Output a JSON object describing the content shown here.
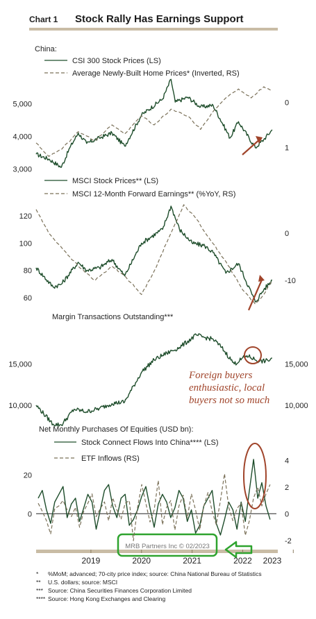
{
  "header": {
    "chart_number": "Chart 1",
    "title": "Stock Rally Has Earnings Support"
  },
  "colors": {
    "primary_series": "#1e4d2b",
    "secondary_series": "#7a7058",
    "annotation": "#a0442a",
    "watermark_box": "#2ea32e",
    "rule": "#c9bca5"
  },
  "chart_data": [
    {
      "type": "line",
      "panel_heading": "China:",
      "x_range": [
        "2018-06",
        "2023-03"
      ],
      "left_axis": {
        "ticks": [
          "3,000",
          "4,000",
          "5,000"
        ],
        "tick_values": [
          3000,
          4000,
          5000
        ],
        "range": [
          2900,
          5800
        ]
      },
      "right_axis": {
        "ticks": [
          "0",
          "1"
        ],
        "tick_values": [
          0,
          1
        ],
        "range": [
          -0.55,
          1.55
        ],
        "inverted": true
      },
      "series": [
        {
          "name": "CSI 300 Stock Prices (LS)",
          "axis": "left",
          "style": "solid",
          "points": [
            [
              "2018-06",
              3450
            ],
            [
              "2018-09",
              3300
            ],
            [
              "2018-12",
              3050
            ],
            [
              "2019-02",
              3650
            ],
            [
              "2019-04",
              4100
            ],
            [
              "2019-06",
              3780
            ],
            [
              "2019-09",
              3950
            ],
            [
              "2019-12",
              4100
            ],
            [
              "2020-03",
              3700
            ],
            [
              "2020-07",
              4650
            ],
            [
              "2020-12",
              5150
            ],
            [
              "2021-02",
              5750
            ],
            [
              "2021-03",
              5050
            ],
            [
              "2021-06",
              5200
            ],
            [
              "2021-09",
              4900
            ],
            [
              "2021-12",
              4950
            ],
            [
              "2022-04",
              3950
            ],
            [
              "2022-06",
              4450
            ],
            [
              "2022-10",
              3650
            ],
            [
              "2022-12",
              3900
            ],
            [
              "2023-02",
              4200
            ]
          ]
        },
        {
          "name": "Average Newly-Built Home Prices* (Inverted, RS)",
          "axis": "right",
          "style": "dashed",
          "points": [
            [
              "2018-06",
              0.9
            ],
            [
              "2018-09",
              1.2
            ],
            [
              "2018-12",
              1.05
            ],
            [
              "2019-04",
              0.65
            ],
            [
              "2019-08",
              0.85
            ],
            [
              "2019-12",
              0.5
            ],
            [
              "2020-03",
              0.7
            ],
            [
              "2020-07",
              0.3
            ],
            [
              "2020-10",
              0.5
            ],
            [
              "2021-02",
              0.15
            ],
            [
              "2021-06",
              0.3
            ],
            [
              "2021-09",
              0.6
            ],
            [
              "2021-12",
              0.2
            ],
            [
              "2022-03",
              -0.1
            ],
            [
              "2022-06",
              -0.3
            ],
            [
              "2022-09",
              -0.1
            ],
            [
              "2022-12",
              -0.35
            ],
            [
              "2023-02",
              -0.25
            ]
          ]
        }
      ]
    },
    {
      "type": "line",
      "x_range": [
        "2018-06",
        "2023-03"
      ],
      "left_axis": {
        "ticks": [
          "60",
          "80",
          "100",
          "120"
        ],
        "tick_values": [
          60,
          80,
          100,
          120
        ],
        "range": [
          52,
          128
        ]
      },
      "right_axis": {
        "ticks": [
          "0",
          "-10"
        ],
        "tick_values": [
          0,
          -10
        ],
        "range": [
          -16,
          6
        ]
      },
      "series": [
        {
          "name": "MSCI Stock Prices** (LS)",
          "axis": "left",
          "style": "solid",
          "points": [
            [
              "2018-06",
              82
            ],
            [
              "2018-10",
              68
            ],
            [
              "2018-12",
              70
            ],
            [
              "2019-04",
              86
            ],
            [
              "2019-06",
              80
            ],
            [
              "2019-09",
              82
            ],
            [
              "2019-12",
              88
            ],
            [
              "2020-03",
              76
            ],
            [
              "2020-07",
              100
            ],
            [
              "2020-12",
              110
            ],
            [
              "2021-02",
              127
            ],
            [
              "2021-04",
              110
            ],
            [
              "2021-07",
              100
            ],
            [
              "2021-10",
              98
            ],
            [
              "2021-12",
              93
            ],
            [
              "2022-03",
              78
            ],
            [
              "2022-06",
              85
            ],
            [
              "2022-10",
              57
            ],
            [
              "2022-12",
              66
            ],
            [
              "2023-02",
              73
            ]
          ]
        },
        {
          "name": "MSCI 12-Month Forward Earnings** (%YoY, RS)",
          "axis": "right",
          "style": "dashed",
          "points": [
            [
              "2018-06",
              5
            ],
            [
              "2018-09",
              0
            ],
            [
              "2018-12",
              -3
            ],
            [
              "2019-04",
              -7
            ],
            [
              "2019-08",
              -10
            ],
            [
              "2019-12",
              -7
            ],
            [
              "2020-03",
              -9
            ],
            [
              "2020-07",
              -13
            ],
            [
              "2020-10",
              -8
            ],
            [
              "2021-02",
              0
            ],
            [
              "2021-05",
              6
            ],
            [
              "2021-08",
              3
            ],
            [
              "2021-11",
              -1
            ],
            [
              "2022-03",
              -6
            ],
            [
              "2022-07",
              -12
            ],
            [
              "2022-10",
              -15
            ],
            [
              "2022-12",
              -13
            ],
            [
              "2023-02",
              -10
            ]
          ]
        }
      ]
    },
    {
      "type": "line",
      "title": "Margin Transactions Outstanding***",
      "x_range": [
        "2018-06",
        "2023-03"
      ],
      "left_axis": {
        "ticks": [
          "10,000",
          "15,000"
        ],
        "tick_values": [
          10000,
          15000
        ],
        "range": [
          7800,
          20000
        ]
      },
      "right_axis": {
        "ticks": [
          "10,000",
          "15,000"
        ],
        "tick_values": [
          10000,
          15000
        ],
        "range": [
          7800,
          20000
        ]
      },
      "series": [
        {
          "name": "Margin Transactions Outstanding***",
          "axis": "left",
          "style": "solid",
          "points": [
            [
              "2018-06",
              10000
            ],
            [
              "2018-10",
              7700
            ],
            [
              "2018-12",
              7600
            ],
            [
              "2019-03",
              9500
            ],
            [
              "2019-06",
              9200
            ],
            [
              "2019-09",
              9600
            ],
            [
              "2019-12",
              10200
            ],
            [
              "2020-03",
              10400
            ],
            [
              "2020-07",
              14000
            ],
            [
              "2020-10",
              15500
            ],
            [
              "2021-01",
              16300
            ],
            [
              "2021-04",
              17000
            ],
            [
              "2021-08",
              18500
            ],
            [
              "2021-10",
              18200
            ],
            [
              "2021-12",
              18000
            ],
            [
              "2022-02",
              17000
            ],
            [
              "2022-05",
              15000
            ],
            [
              "2022-08",
              16000
            ],
            [
              "2022-11",
              15300
            ],
            [
              "2023-01",
              15400
            ],
            [
              "2023-02",
              15700
            ]
          ]
        }
      ],
      "annotation": "Foreign buyers enthusiastic, local buyers not so much",
      "annotation_lines": [
        "Foreign buyers",
        "enthusiastic, local",
        "buyers not so much"
      ]
    },
    {
      "type": "line",
      "title": "Net Monthly Purchases Of Equities (USD bn):",
      "x_range": [
        "2018-06",
        "2023-03"
      ],
      "x_ticks": [
        "2019",
        "2020",
        "2021",
        "2022",
        "2023"
      ],
      "left_axis": {
        "ticks": [
          "0",
          "20"
        ],
        "tick_values": [
          0,
          20
        ],
        "range": [
          -16,
          33
        ]
      },
      "right_axis": {
        "ticks": [
          "-2",
          "0",
          "2",
          "4"
        ],
        "tick_values": [
          -2,
          0,
          2,
          4
        ],
        "range": [
          -2.3,
          4.8
        ]
      },
      "series": [
        {
          "name": "Stock Connect Flows Into China**** (LS)",
          "axis": "left",
          "style": "solid",
          "values": [
            8,
            12,
            2,
            -5,
            6,
            10,
            14,
            -2,
            5,
            8,
            -4,
            3,
            10,
            6,
            -8,
            2,
            12,
            15,
            4,
            -2,
            8,
            10,
            -6,
            -3,
            2,
            9,
            14,
            3,
            -7,
            5,
            10,
            6,
            -2,
            3,
            12,
            8,
            -4,
            2,
            -10,
            -6,
            4,
            8,
            12,
            -5,
            -11,
            -3,
            6,
            2,
            -8,
            6,
            -4,
            12,
            28,
            8,
            16,
            4,
            -3
          ]
        },
        {
          "name": "ETF Inflows (RS)",
          "axis": "right",
          "style": "dashed",
          "values": [
            0.8,
            0.2,
            -0.5,
            -1.5,
            0.4,
            0.6,
            1.0,
            0.3,
            -0.2,
            0.5,
            -1.0,
            0.2,
            0.8,
            1.5,
            -0.2,
            0.4,
            0.9,
            -0.5,
            1.2,
            0.3,
            -0.4,
            0.8,
            1.0,
            -2.0,
            0.5,
            2.2,
            0.8,
            -0.6,
            0.3,
            2.5,
            -0.8,
            0.5,
            1.0,
            -1.2,
            0.6,
            1.4,
            -0.3,
            1.5,
            0.3,
            -1.2,
            0.6,
            1.6,
            0.2,
            -0.8,
            1.0,
            3.0,
            0.5,
            -0.5,
            0.4,
            0.8,
            -1.6,
            -0.5,
            1.2,
            2.0,
            0.6,
            1.5,
            2.2
          ]
        }
      ]
    }
  ],
  "watermark": "MRB Partners Inc © 02/2023",
  "footnotes": [
    {
      "mark": "*",
      "text": "%MoM; advanced; 70-city price index; source: China National Bureau of Statistics"
    },
    {
      "mark": "**",
      "text": "U.S. dollars; source: MSCI"
    },
    {
      "mark": "***",
      "text": "Source: China Securities Finances Corporation Limited"
    },
    {
      "mark": "****",
      "text": "Source: Hong Kong Exchanges and Clearing"
    }
  ]
}
